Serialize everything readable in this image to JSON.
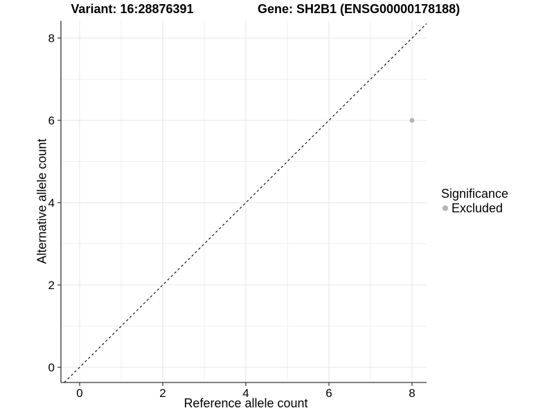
{
  "chart_data": {
    "type": "scatter",
    "title_left": "Variant: 16:28876391",
    "title_right": "Gene: SH2B1 (ENSG00000178188)",
    "xlabel": "Reference allele count",
    "ylabel": "Alternative allele count",
    "xlim": [
      -0.45,
      8.35
    ],
    "ylim": [
      -0.37,
      8.42
    ],
    "xticks": [
      0,
      2,
      4,
      6,
      8
    ],
    "yticks": [
      0,
      2,
      4,
      6,
      8
    ],
    "minor_xticks": [
      1,
      3,
      5,
      7
    ],
    "minor_yticks": [
      1,
      3,
      5,
      7
    ],
    "grid": "on",
    "identity_line": {
      "equation": "y = x",
      "style": "dashed"
    },
    "series": [
      {
        "name": "Excluded",
        "color": "#b4b4b4",
        "points": [
          {
            "x": 8,
            "y": 6
          }
        ]
      }
    ],
    "legend": {
      "title": "Significance",
      "position": "right",
      "items": [
        {
          "label": "Excluded",
          "color": "#b4b4b4"
        }
      ]
    }
  },
  "colors": {
    "background": "#ffffff",
    "grid_major": "#e5e5e5",
    "grid_minor": "#efefef",
    "axis": "#333333",
    "text": "#000000",
    "identity_line": "#000000"
  }
}
